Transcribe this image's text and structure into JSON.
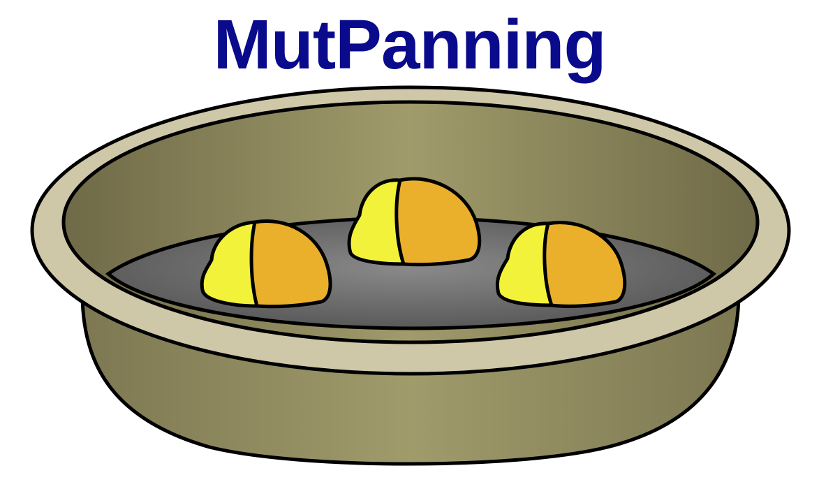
{
  "logo": {
    "title": "MutPanning",
    "title_color": "#0a0a8c"
  },
  "colors": {
    "pan_light": "#a09b6b",
    "pan_dark": "#7d7852",
    "pan_rim": "#cfc8a8",
    "water_light": "#8a8a8a",
    "water_dark": "#5a5a5a",
    "nugget_yellow": "#f3f23a",
    "nugget_orange": "#ebb02b",
    "outline": "#000000"
  }
}
